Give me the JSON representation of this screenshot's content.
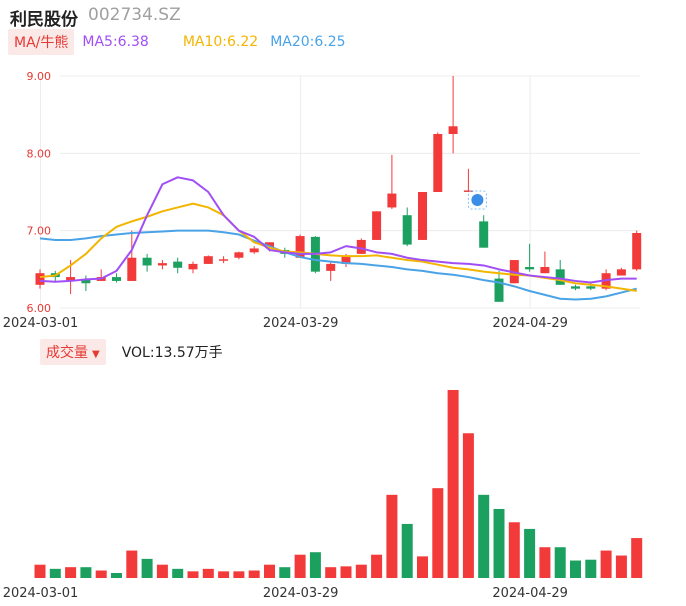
{
  "header": {
    "name": "利民股份",
    "code": "002734.SZ"
  },
  "ma_legend": {
    "toggle_label": "MA/牛熊",
    "ma5": "MA5:6.38",
    "ma10": "MA10:6.22",
    "ma20": "MA20:6.25"
  },
  "volume_legend": {
    "toggle_label": "成交量",
    "vol_text": "VOL:13.57万手"
  },
  "colors": {
    "up": "#f23a3a",
    "down": "#1ca060",
    "ma5": "#a14ef6",
    "ma10": "#f2b600",
    "ma20": "#4aa3e7",
    "grid": "#ececec"
  },
  "chart_data": [
    {
      "type": "candlestick",
      "ylim": [
        6.0,
        9.0
      ],
      "y_ticks": [
        "9.00",
        "8.00",
        "7.00",
        "6.00"
      ],
      "x_tick_labels": [
        {
          "label": "2024-03-01",
          "index": 0
        },
        {
          "label": "2024-03-29",
          "index": 17
        },
        {
          "label": "2024-04-29",
          "index": 32
        }
      ],
      "candles": [
        {
          "o": 6.3,
          "h": 6.5,
          "l": 6.25,
          "c": 6.45
        },
        {
          "o": 6.45,
          "h": 6.48,
          "l": 6.33,
          "c": 6.4
        },
        {
          "o": 6.35,
          "h": 6.62,
          "l": 6.18,
          "c": 6.4
        },
        {
          "o": 6.37,
          "h": 6.42,
          "l": 6.22,
          "c": 6.32
        },
        {
          "o": 6.35,
          "h": 6.5,
          "l": 6.35,
          "c": 6.4
        },
        {
          "o": 6.4,
          "h": 6.45,
          "l": 6.33,
          "c": 6.35
        },
        {
          "o": 6.35,
          "h": 7.0,
          "l": 6.35,
          "c": 6.65
        },
        {
          "o": 6.65,
          "h": 6.7,
          "l": 6.47,
          "c": 6.55
        },
        {
          "o": 6.55,
          "h": 6.62,
          "l": 6.5,
          "c": 6.58
        },
        {
          "o": 6.6,
          "h": 6.65,
          "l": 6.45,
          "c": 6.52
        },
        {
          "o": 6.5,
          "h": 6.6,
          "l": 6.45,
          "c": 6.57
        },
        {
          "o": 6.57,
          "h": 6.68,
          "l": 6.57,
          "c": 6.67
        },
        {
          "o": 6.63,
          "h": 6.67,
          "l": 6.58,
          "c": 6.63
        },
        {
          "o": 6.65,
          "h": 6.73,
          "l": 6.63,
          "c": 6.72
        },
        {
          "o": 6.72,
          "h": 6.8,
          "l": 6.7,
          "c": 6.77
        },
        {
          "o": 6.78,
          "h": 6.85,
          "l": 6.73,
          "c": 6.85
        },
        {
          "o": 6.75,
          "h": 6.78,
          "l": 6.65,
          "c": 6.7
        },
        {
          "o": 6.65,
          "h": 6.95,
          "l": 6.65,
          "c": 6.93
        },
        {
          "o": 6.92,
          "h": 6.93,
          "l": 6.45,
          "c": 6.47
        },
        {
          "o": 6.48,
          "h": 6.6,
          "l": 6.35,
          "c": 6.57
        },
        {
          "o": 6.57,
          "h": 6.7,
          "l": 6.53,
          "c": 6.67
        },
        {
          "o": 6.7,
          "h": 6.9,
          "l": 6.7,
          "c": 6.88
        },
        {
          "o": 6.88,
          "h": 7.25,
          "l": 6.88,
          "c": 7.25
        },
        {
          "o": 7.3,
          "h": 7.98,
          "l": 7.28,
          "c": 7.48
        },
        {
          "o": 7.2,
          "h": 7.3,
          "l": 6.8,
          "c": 6.82
        },
        {
          "o": 6.88,
          "h": 7.5,
          "l": 6.88,
          "c": 7.5
        },
        {
          "o": 7.5,
          "h": 8.27,
          "l": 7.5,
          "c": 8.25
        },
        {
          "o": 8.25,
          "h": 9.0,
          "l": 8.0,
          "c": 8.35
        },
        {
          "o": 7.52,
          "h": 7.8,
          "l": 7.5,
          "c": 7.52
        },
        {
          "o": 7.12,
          "h": 7.2,
          "l": 6.78,
          "c": 6.78
        },
        {
          "o": 6.38,
          "h": 6.48,
          "l": 6.08,
          "c": 6.08
        },
        {
          "o": 6.32,
          "h": 6.62,
          "l": 6.32,
          "c": 6.62
        },
        {
          "o": 6.53,
          "h": 6.83,
          "l": 6.47,
          "c": 6.5
        },
        {
          "o": 6.45,
          "h": 6.73,
          "l": 6.45,
          "c": 6.53
        },
        {
          "o": 6.5,
          "h": 6.62,
          "l": 6.3,
          "c": 6.3
        },
        {
          "o": 6.28,
          "h": 6.3,
          "l": 6.23,
          "c": 6.25
        },
        {
          "o": 6.28,
          "h": 6.33,
          "l": 6.23,
          "c": 6.25
        },
        {
          "o": 6.25,
          "h": 6.5,
          "l": 6.23,
          "c": 6.45
        },
        {
          "o": 6.42,
          "h": 6.52,
          "l": 6.42,
          "c": 6.5
        },
        {
          "o": 6.5,
          "h": 7.0,
          "l": 6.48,
          "c": 6.97
        }
      ],
      "ma5": [
        6.35,
        6.34,
        6.35,
        6.37,
        6.38,
        6.48,
        6.75,
        7.2,
        7.6,
        7.69,
        7.65,
        7.5,
        7.2,
        7.0,
        6.92,
        6.75,
        6.72,
        6.7,
        6.7,
        6.72,
        6.8,
        6.77,
        6.72,
        6.7,
        6.65,
        6.62,
        6.6,
        6.58,
        6.57,
        6.55,
        6.5,
        6.46,
        6.42,
        6.4,
        6.38,
        6.35,
        6.33,
        6.36,
        6.38,
        6.38
      ],
      "ma10": [
        6.4,
        6.42,
        6.55,
        6.7,
        6.9,
        7.05,
        7.12,
        7.18,
        7.25,
        7.3,
        7.35,
        7.3,
        7.2,
        7.0,
        6.85,
        6.78,
        6.73,
        6.72,
        6.7,
        6.68,
        6.67,
        6.67,
        6.68,
        6.65,
        6.62,
        6.6,
        6.56,
        6.52,
        6.5,
        6.47,
        6.45,
        6.43,
        6.42,
        6.39,
        6.36,
        6.32,
        6.3,
        6.28,
        6.25,
        6.22
      ],
      "ma20": [
        6.9,
        6.88,
        6.88,
        6.9,
        6.93,
        6.95,
        6.97,
        6.98,
        6.99,
        7.0,
        7.0,
        7.0,
        6.98,
        6.95,
        6.87,
        6.8,
        6.72,
        6.66,
        6.62,
        6.6,
        6.58,
        6.57,
        6.55,
        6.53,
        6.5,
        6.48,
        6.45,
        6.43,
        6.4,
        6.36,
        6.33,
        6.28,
        6.22,
        6.17,
        6.12,
        6.11,
        6.12,
        6.15,
        6.2,
        6.25
      ],
      "marker_index": 28
    },
    {
      "type": "bar",
      "title": "成交量",
      "volume_relative": [
        0.16,
        0.11,
        0.13,
        0.13,
        0.09,
        0.06,
        0.33,
        0.23,
        0.16,
        0.11,
        0.08,
        0.11,
        0.08,
        0.08,
        0.09,
        0.16,
        0.13,
        0.28,
        0.31,
        0.13,
        0.14,
        0.16,
        0.28,
        1.0,
        0.65,
        0.26,
        1.08,
        2.26,
        1.74,
        1.0,
        0.83,
        0.67,
        0.59,
        0.37,
        0.37,
        0.21,
        0.22,
        0.33,
        0.27,
        0.48
      ]
    }
  ]
}
